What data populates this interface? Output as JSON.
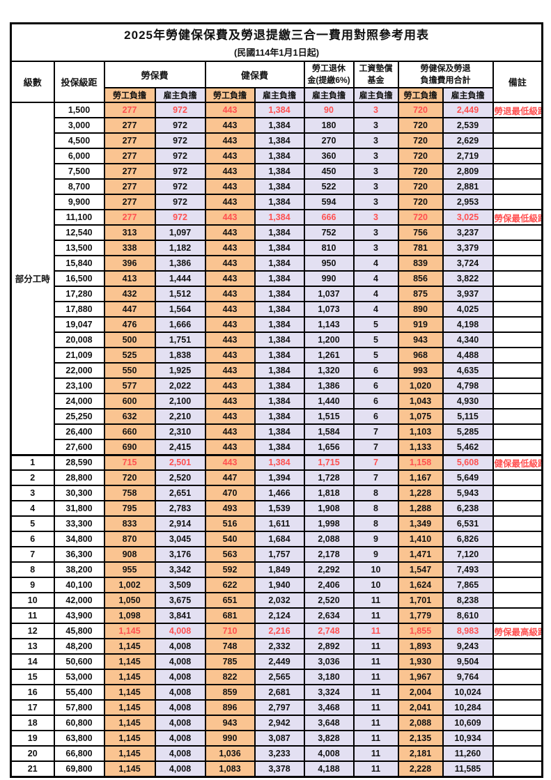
{
  "title": "2025年勞健保保費及勞退提繳三合一費用對照參考用表",
  "subtitle": "(民國114年1月1日起)",
  "colors": {
    "employee_column_bg": "#FAC491",
    "employer_column_bg": "#E3E0F2",
    "highlight_text": "#FF5050",
    "border": "#000000"
  },
  "header": {
    "level": "級數",
    "bracket": "投保級距",
    "labor_insurance": "勞保費",
    "health_insurance": "健保費",
    "pension_line1": "勞工退休",
    "pension_line2": "金(提繳6%)",
    "wage_fund_line1": "工資墊償",
    "wage_fund_line2": "基金",
    "total_line1": "勞健保及勞退",
    "total_line2": "負擔費用合計",
    "remark": "備註",
    "employee": "勞工負擔",
    "employer": "雇主負擔"
  },
  "groups": {
    "part_time_label": "部分工時"
  },
  "rows": [
    {
      "level": "",
      "bracket": "1,500",
      "labor_emp": "277",
      "labor_er": "972",
      "health_emp": "443",
      "health_er": "1,384",
      "pension_er": "90",
      "wagefund_er": "3",
      "total_emp": "720",
      "total_er": "2,449",
      "note": "勞退最低級距",
      "red": true
    },
    {
      "level": "",
      "bracket": "3,000",
      "labor_emp": "277",
      "labor_er": "972",
      "health_emp": "443",
      "health_er": "1,384",
      "pension_er": "180",
      "wagefund_er": "3",
      "total_emp": "720",
      "total_er": "2,539",
      "note": "",
      "red": false
    },
    {
      "level": "",
      "bracket": "4,500",
      "labor_emp": "277",
      "labor_er": "972",
      "health_emp": "443",
      "health_er": "1,384",
      "pension_er": "270",
      "wagefund_er": "3",
      "total_emp": "720",
      "total_er": "2,629",
      "note": "",
      "red": false
    },
    {
      "level": "",
      "bracket": "6,000",
      "labor_emp": "277",
      "labor_er": "972",
      "health_emp": "443",
      "health_er": "1,384",
      "pension_er": "360",
      "wagefund_er": "3",
      "total_emp": "720",
      "total_er": "2,719",
      "note": "",
      "red": false
    },
    {
      "level": "",
      "bracket": "7,500",
      "labor_emp": "277",
      "labor_er": "972",
      "health_emp": "443",
      "health_er": "1,384",
      "pension_er": "450",
      "wagefund_er": "3",
      "total_emp": "720",
      "total_er": "2,809",
      "note": "",
      "red": false
    },
    {
      "level": "",
      "bracket": "8,700",
      "labor_emp": "277",
      "labor_er": "972",
      "health_emp": "443",
      "health_er": "1,384",
      "pension_er": "522",
      "wagefund_er": "3",
      "total_emp": "720",
      "total_er": "2,881",
      "note": "",
      "red": false
    },
    {
      "level": "",
      "bracket": "9,900",
      "labor_emp": "277",
      "labor_er": "972",
      "health_emp": "443",
      "health_er": "1,384",
      "pension_er": "594",
      "wagefund_er": "3",
      "total_emp": "720",
      "total_er": "2,953",
      "note": "",
      "red": false
    },
    {
      "level": "",
      "bracket": "11,100",
      "labor_emp": "277",
      "labor_er": "972",
      "health_emp": "443",
      "health_er": "1,384",
      "pension_er": "666",
      "wagefund_er": "3",
      "total_emp": "720",
      "total_er": "3,025",
      "note": "勞保最低級距",
      "red": true
    },
    {
      "level": "",
      "bracket": "12,540",
      "labor_emp": "313",
      "labor_er": "1,097",
      "health_emp": "443",
      "health_er": "1,384",
      "pension_er": "752",
      "wagefund_er": "3",
      "total_emp": "756",
      "total_er": "3,237",
      "note": "",
      "red": false
    },
    {
      "level": "",
      "bracket": "13,500",
      "labor_emp": "338",
      "labor_er": "1,182",
      "health_emp": "443",
      "health_er": "1,384",
      "pension_er": "810",
      "wagefund_er": "3",
      "total_emp": "781",
      "total_er": "3,379",
      "note": "",
      "red": false
    },
    {
      "level": "",
      "bracket": "15,840",
      "labor_emp": "396",
      "labor_er": "1,386",
      "health_emp": "443",
      "health_er": "1,384",
      "pension_er": "950",
      "wagefund_er": "4",
      "total_emp": "839",
      "total_er": "3,724",
      "note": "",
      "red": false
    },
    {
      "level": "",
      "bracket": "16,500",
      "labor_emp": "413",
      "labor_er": "1,444",
      "health_emp": "443",
      "health_er": "1,384",
      "pension_er": "990",
      "wagefund_er": "4",
      "total_emp": "856",
      "total_er": "3,822",
      "note": "",
      "red": false
    },
    {
      "level": "",
      "bracket": "17,280",
      "labor_emp": "432",
      "labor_er": "1,512",
      "health_emp": "443",
      "health_er": "1,384",
      "pension_er": "1,037",
      "wagefund_er": "4",
      "total_emp": "875",
      "total_er": "3,937",
      "note": "",
      "red": false
    },
    {
      "level": "",
      "bracket": "17,880",
      "labor_emp": "447",
      "labor_er": "1,564",
      "health_emp": "443",
      "health_er": "1,384",
      "pension_er": "1,073",
      "wagefund_er": "4",
      "total_emp": "890",
      "total_er": "4,025",
      "note": "",
      "red": false
    },
    {
      "level": "",
      "bracket": "19,047",
      "labor_emp": "476",
      "labor_er": "1,666",
      "health_emp": "443",
      "health_er": "1,384",
      "pension_er": "1,143",
      "wagefund_er": "5",
      "total_emp": "919",
      "total_er": "4,198",
      "note": "",
      "red": false
    },
    {
      "level": "",
      "bracket": "20,008",
      "labor_emp": "500",
      "labor_er": "1,751",
      "health_emp": "443",
      "health_er": "1,384",
      "pension_er": "1,200",
      "wagefund_er": "5",
      "total_emp": "943",
      "total_er": "4,340",
      "note": "",
      "red": false
    },
    {
      "level": "",
      "bracket": "21,009",
      "labor_emp": "525",
      "labor_er": "1,838",
      "health_emp": "443",
      "health_er": "1,384",
      "pension_er": "1,261",
      "wagefund_er": "5",
      "total_emp": "968",
      "total_er": "4,488",
      "note": "",
      "red": false
    },
    {
      "level": "",
      "bracket": "22,000",
      "labor_emp": "550",
      "labor_er": "1,925",
      "health_emp": "443",
      "health_er": "1,384",
      "pension_er": "1,320",
      "wagefund_er": "6",
      "total_emp": "993",
      "total_er": "4,635",
      "note": "",
      "red": false
    },
    {
      "level": "",
      "bracket": "23,100",
      "labor_emp": "577",
      "labor_er": "2,022",
      "health_emp": "443",
      "health_er": "1,384",
      "pension_er": "1,386",
      "wagefund_er": "6",
      "total_emp": "1,020",
      "total_er": "4,798",
      "note": "",
      "red": false
    },
    {
      "level": "",
      "bracket": "24,000",
      "labor_emp": "600",
      "labor_er": "2,100",
      "health_emp": "443",
      "health_er": "1,384",
      "pension_er": "1,440",
      "wagefund_er": "6",
      "total_emp": "1,043",
      "total_er": "4,930",
      "note": "",
      "red": false
    },
    {
      "level": "",
      "bracket": "25,250",
      "labor_emp": "632",
      "labor_er": "2,210",
      "health_emp": "443",
      "health_er": "1,384",
      "pension_er": "1,515",
      "wagefund_er": "6",
      "total_emp": "1,075",
      "total_er": "5,115",
      "note": "",
      "red": false
    },
    {
      "level": "",
      "bracket": "26,400",
      "labor_emp": "660",
      "labor_er": "2,310",
      "health_emp": "443",
      "health_er": "1,384",
      "pension_er": "1,584",
      "wagefund_er": "7",
      "total_emp": "1,103",
      "total_er": "5,285",
      "note": "",
      "red": false
    },
    {
      "level": "",
      "bracket": "27,600",
      "labor_emp": "690",
      "labor_er": "2,415",
      "health_emp": "443",
      "health_er": "1,384",
      "pension_er": "1,656",
      "wagefund_er": "7",
      "total_emp": "1,133",
      "total_er": "5,462",
      "note": "",
      "red": false
    },
    {
      "level": "1",
      "bracket": "28,590",
      "labor_emp": "715",
      "labor_er": "2,501",
      "health_emp": "443",
      "health_er": "1,384",
      "pension_er": "1,715",
      "wagefund_er": "7",
      "total_emp": "1,158",
      "total_er": "5,608",
      "note": "健保最低級距",
      "red": true,
      "section_start": true
    },
    {
      "level": "2",
      "bracket": "28,800",
      "labor_emp": "720",
      "labor_er": "2,520",
      "health_emp": "447",
      "health_er": "1,394",
      "pension_er": "1,728",
      "wagefund_er": "7",
      "total_emp": "1,167",
      "total_er": "5,649",
      "note": "",
      "red": false
    },
    {
      "level": "3",
      "bracket": "30,300",
      "labor_emp": "758",
      "labor_er": "2,651",
      "health_emp": "470",
      "health_er": "1,466",
      "pension_er": "1,818",
      "wagefund_er": "8",
      "total_emp": "1,228",
      "total_er": "5,943",
      "note": "",
      "red": false
    },
    {
      "level": "4",
      "bracket": "31,800",
      "labor_emp": "795",
      "labor_er": "2,783",
      "health_emp": "493",
      "health_er": "1,539",
      "pension_er": "1,908",
      "wagefund_er": "8",
      "total_emp": "1,288",
      "total_er": "6,238",
      "note": "",
      "red": false
    },
    {
      "level": "5",
      "bracket": "33,300",
      "labor_emp": "833",
      "labor_er": "2,914",
      "health_emp": "516",
      "health_er": "1,611",
      "pension_er": "1,998",
      "wagefund_er": "8",
      "total_emp": "1,349",
      "total_er": "6,531",
      "note": "",
      "red": false
    },
    {
      "level": "6",
      "bracket": "34,800",
      "labor_emp": "870",
      "labor_er": "3,045",
      "health_emp": "540",
      "health_er": "1,684",
      "pension_er": "2,088",
      "wagefund_er": "9",
      "total_emp": "1,410",
      "total_er": "6,826",
      "note": "",
      "red": false
    },
    {
      "level": "7",
      "bracket": "36,300",
      "labor_emp": "908",
      "labor_er": "3,176",
      "health_emp": "563",
      "health_er": "1,757",
      "pension_er": "2,178",
      "wagefund_er": "9",
      "total_emp": "1,471",
      "total_er": "7,120",
      "note": "",
      "red": false
    },
    {
      "level": "8",
      "bracket": "38,200",
      "labor_emp": "955",
      "labor_er": "3,342",
      "health_emp": "592",
      "health_er": "1,849",
      "pension_er": "2,292",
      "wagefund_er": "10",
      "total_emp": "1,547",
      "total_er": "7,493",
      "note": "",
      "red": false
    },
    {
      "level": "9",
      "bracket": "40,100",
      "labor_emp": "1,002",
      "labor_er": "3,509",
      "health_emp": "622",
      "health_er": "1,940",
      "pension_er": "2,406",
      "wagefund_er": "10",
      "total_emp": "1,624",
      "total_er": "7,865",
      "note": "",
      "red": false
    },
    {
      "level": "10",
      "bracket": "42,000",
      "labor_emp": "1,050",
      "labor_er": "3,675",
      "health_emp": "651",
      "health_er": "2,032",
      "pension_er": "2,520",
      "wagefund_er": "11",
      "total_emp": "1,701",
      "total_er": "8,238",
      "note": "",
      "red": false
    },
    {
      "level": "11",
      "bracket": "43,900",
      "labor_emp": "1,098",
      "labor_er": "3,841",
      "health_emp": "681",
      "health_er": "2,124",
      "pension_er": "2,634",
      "wagefund_er": "11",
      "total_emp": "1,779",
      "total_er": "8,610",
      "note": "",
      "red": false
    },
    {
      "level": "12",
      "bracket": "45,800",
      "labor_emp": "1,145",
      "labor_er": "4,008",
      "health_emp": "710",
      "health_er": "2,216",
      "pension_er": "2,748",
      "wagefund_er": "11",
      "total_emp": "1,855",
      "total_er": "8,983",
      "note": "勞保最高級距",
      "red": true
    },
    {
      "level": "13",
      "bracket": "48,200",
      "labor_emp": "1,145",
      "labor_er": "4,008",
      "health_emp": "748",
      "health_er": "2,332",
      "pension_er": "2,892",
      "wagefund_er": "11",
      "total_emp": "1,893",
      "total_er": "9,243",
      "note": "",
      "red": false
    },
    {
      "level": "14",
      "bracket": "50,600",
      "labor_emp": "1,145",
      "labor_er": "4,008",
      "health_emp": "785",
      "health_er": "2,449",
      "pension_er": "3,036",
      "wagefund_er": "11",
      "total_emp": "1,930",
      "total_er": "9,504",
      "note": "",
      "red": false
    },
    {
      "level": "15",
      "bracket": "53,000",
      "labor_emp": "1,145",
      "labor_er": "4,008",
      "health_emp": "822",
      "health_er": "2,565",
      "pension_er": "3,180",
      "wagefund_er": "11",
      "total_emp": "1,967",
      "total_er": "9,764",
      "note": "",
      "red": false
    },
    {
      "level": "16",
      "bracket": "55,400",
      "labor_emp": "1,145",
      "labor_er": "4,008",
      "health_emp": "859",
      "health_er": "2,681",
      "pension_er": "3,324",
      "wagefund_er": "11",
      "total_emp": "2,004",
      "total_er": "10,024",
      "note": "",
      "red": false
    },
    {
      "level": "17",
      "bracket": "57,800",
      "labor_emp": "1,145",
      "labor_er": "4,008",
      "health_emp": "896",
      "health_er": "2,797",
      "pension_er": "3,468",
      "wagefund_er": "11",
      "total_emp": "2,041",
      "total_er": "10,284",
      "note": "",
      "red": false
    },
    {
      "level": "18",
      "bracket": "60,800",
      "labor_emp": "1,145",
      "labor_er": "4,008",
      "health_emp": "943",
      "health_er": "2,942",
      "pension_er": "3,648",
      "wagefund_er": "11",
      "total_emp": "2,088",
      "total_er": "10,609",
      "note": "",
      "red": false
    },
    {
      "level": "19",
      "bracket": "63,800",
      "labor_emp": "1,145",
      "labor_er": "4,008",
      "health_emp": "990",
      "health_er": "3,087",
      "pension_er": "3,828",
      "wagefund_er": "11",
      "total_emp": "2,135",
      "total_er": "10,934",
      "note": "",
      "red": false
    },
    {
      "level": "20",
      "bracket": "66,800",
      "labor_emp": "1,145",
      "labor_er": "4,008",
      "health_emp": "1,036",
      "health_er": "3,233",
      "pension_er": "4,008",
      "wagefund_er": "11",
      "total_emp": "2,181",
      "total_er": "11,260",
      "note": "",
      "red": false
    },
    {
      "level": "21",
      "bracket": "69,800",
      "labor_emp": "1,145",
      "labor_er": "4,008",
      "health_emp": "1,083",
      "health_er": "3,378",
      "pension_er": "4,188",
      "wagefund_er": "11",
      "total_emp": "2,228",
      "total_er": "11,585",
      "note": "",
      "red": false
    }
  ]
}
